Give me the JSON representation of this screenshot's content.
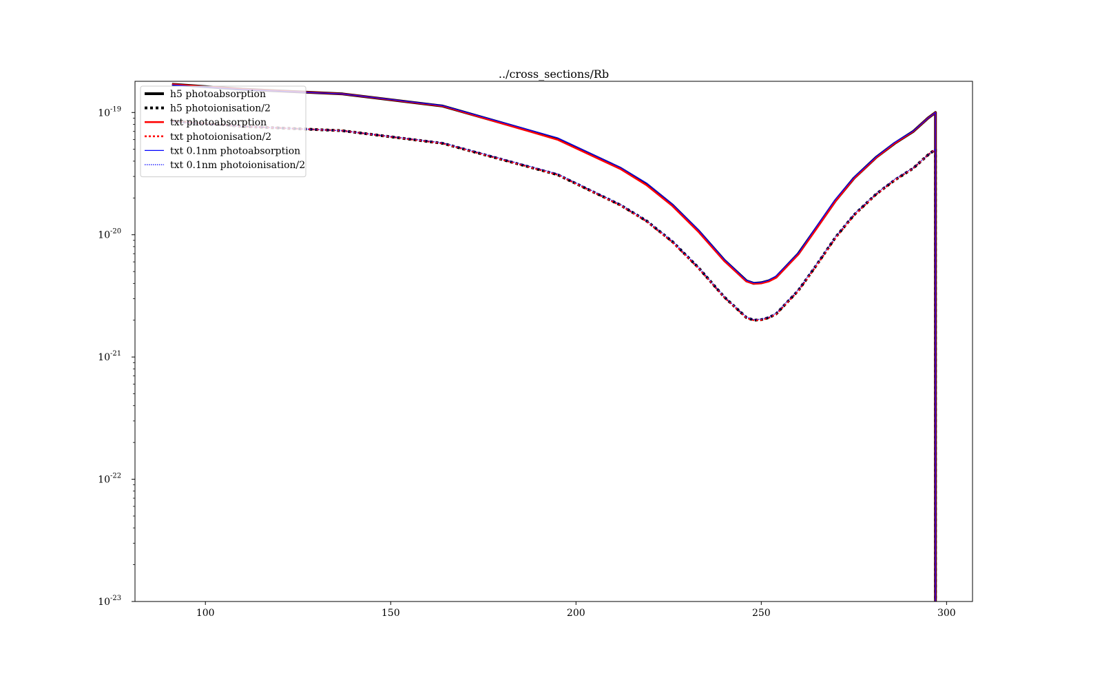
{
  "chart_data": {
    "type": "line",
    "title": "../cross_sections/Rb",
    "xlabel": "",
    "ylabel": "",
    "xlim": [
      81,
      307
    ],
    "ylim": [
      1e-23,
      1.8e-19
    ],
    "yscale": "log",
    "grid": false,
    "legend_position": "top-left",
    "x_ticks": [
      100,
      150,
      200,
      250,
      300
    ],
    "x_tick_labels": [
      "100",
      "150",
      "200",
      "250",
      "300"
    ],
    "y_ticks": [
      1e-23,
      1e-22,
      1e-21,
      1e-20,
      1e-19
    ],
    "y_tick_labels": [
      {
        "base": "10",
        "exp": "-23"
      },
      {
        "base": "10",
        "exp": "-22"
      },
      {
        "base": "10",
        "exp": "-21"
      },
      {
        "base": "10",
        "exp": "-20"
      },
      {
        "base": "10",
        "exp": "-19"
      }
    ],
    "series": [
      {
        "name": "h5 photoabsorption",
        "color": "#000000",
        "style": "solid",
        "width": 4,
        "x": [
          91,
          110,
          137,
          164,
          195,
          212,
          219,
          226,
          233,
          240,
          246,
          248,
          250,
          252,
          254,
          260,
          265,
          270,
          275,
          281,
          286,
          291,
          295,
          297,
          297,
          297
        ],
        "y": [
          1.7e-19,
          1.55e-19,
          1.42e-19,
          1.13e-19,
          6.1e-20,
          3.5e-20,
          2.6e-20,
          1.75e-20,
          1.08e-20,
          6.2e-21,
          4.2e-21,
          4e-21,
          4.05e-21,
          4.2e-21,
          4.5e-21,
          7e-21,
          1.15e-20,
          1.9e-20,
          2.9e-20,
          4.3e-20,
          5.6e-20,
          7e-20,
          9e-20,
          1e-19,
          3e-21,
          1e-23
        ]
      },
      {
        "name": "h5 photoionisation/2",
        "color": "#000000",
        "style": "dotted",
        "width": 4,
        "x": [
          91,
          110,
          137,
          164,
          195,
          212,
          219,
          226,
          233,
          240,
          246,
          248,
          250,
          252,
          254,
          260,
          265,
          270,
          275,
          281,
          286,
          291,
          295,
          297,
          297
        ],
        "y": [
          8.5e-20,
          7.7e-20,
          7.1e-20,
          5.6e-20,
          3.1e-20,
          1.75e-20,
          1.3e-20,
          8.8e-21,
          5.4e-21,
          3.1e-21,
          2.1e-21,
          2e-21,
          2.02e-21,
          2.1e-21,
          2.25e-21,
          3.5e-21,
          5.7e-21,
          9.5e-21,
          1.45e-20,
          2.15e-20,
          2.8e-20,
          3.5e-20,
          4.5e-20,
          5e-20,
          1e-23
        ]
      },
      {
        "name": "txt photoabsorption",
        "color": "#ff0000",
        "style": "solid",
        "width": 2.6,
        "x": [
          91,
          110,
          137,
          164,
          195,
          212,
          219,
          226,
          233,
          240,
          246,
          248,
          250,
          252,
          254,
          260,
          265,
          270,
          275,
          281,
          286,
          291,
          295,
          297,
          297,
          297
        ],
        "y": [
          1.7e-19,
          1.55e-19,
          1.42e-19,
          1.13e-19,
          6e-20,
          3.45e-20,
          2.55e-20,
          1.72e-20,
          1.06e-20,
          6.1e-21,
          4.15e-21,
          3.98e-21,
          4e-21,
          4.15e-21,
          4.45e-21,
          6.9e-21,
          1.13e-20,
          1.88e-20,
          2.88e-20,
          4.28e-20,
          5.6e-20,
          7e-20,
          9e-20,
          1e-19,
          3e-21,
          1e-23
        ]
      },
      {
        "name": "txt photoionisation/2",
        "color": "#ff0000",
        "style": "dotted",
        "width": 2.6,
        "x": [
          91,
          110,
          137,
          164,
          195,
          212,
          219,
          226,
          233,
          240,
          246,
          248,
          250,
          252,
          254,
          260,
          265,
          270,
          275,
          281,
          286,
          291,
          295,
          297,
          297
        ],
        "y": [
          8.5e-20,
          7.7e-20,
          7.1e-20,
          5.6e-20,
          3.1e-20,
          1.74e-20,
          1.29e-20,
          8.7e-21,
          5.35e-21,
          3.08e-21,
          2.09e-21,
          2e-21,
          2.01e-21,
          2.09e-21,
          2.24e-21,
          3.48e-21,
          5.65e-21,
          9.4e-21,
          1.44e-20,
          2.14e-20,
          2.8e-20,
          3.5e-20,
          4.5e-20,
          5e-20,
          1e-23
        ]
      },
      {
        "name": "txt 0.1nm photoabsorption",
        "color": "#0000ff",
        "style": "solid",
        "width": 1.3,
        "x": [
          91,
          110,
          137,
          164,
          195,
          212,
          219,
          226,
          233,
          240,
          246,
          248,
          250,
          252,
          254,
          260,
          265,
          270,
          275,
          281,
          286,
          291,
          295,
          297,
          297,
          297
        ],
        "y": [
          1.68e-19,
          1.54e-19,
          1.42e-19,
          1.14e-19,
          6.2e-20,
          3.55e-20,
          2.65e-20,
          1.78e-20,
          1.1e-20,
          6.3e-21,
          4.25e-21,
          4.05e-21,
          4.08e-21,
          4.25e-21,
          4.6e-21,
          7.1e-21,
          1.18e-20,
          1.95e-20,
          2.95e-20,
          4.35e-20,
          5.7e-20,
          7.05e-20,
          9e-20,
          1e-19,
          3e-21,
          1e-23
        ]
      },
      {
        "name": "txt 0.1nm photoionisation/2",
        "color": "#0000ff",
        "style": "dotted",
        "width": 1.3,
        "x": [
          91,
          110,
          137,
          164,
          195,
          212,
          219,
          226,
          233,
          240,
          246,
          248,
          250,
          252,
          254,
          260,
          265,
          270,
          275,
          281,
          286,
          291,
          295,
          297,
          297
        ],
        "y": [
          8.4e-20,
          7.7e-20,
          7.1e-20,
          5.65e-20,
          3.15e-20,
          1.77e-20,
          1.31e-20,
          8.9e-21,
          5.45e-21,
          3.12e-21,
          2.12e-21,
          2.02e-21,
          2.04e-21,
          2.12e-21,
          2.28e-21,
          3.55e-21,
          5.8e-21,
          9.6e-21,
          1.47e-20,
          2.17e-20,
          2.85e-20,
          3.52e-20,
          4.5e-20,
          5e-20,
          1e-23
        ]
      }
    ]
  }
}
